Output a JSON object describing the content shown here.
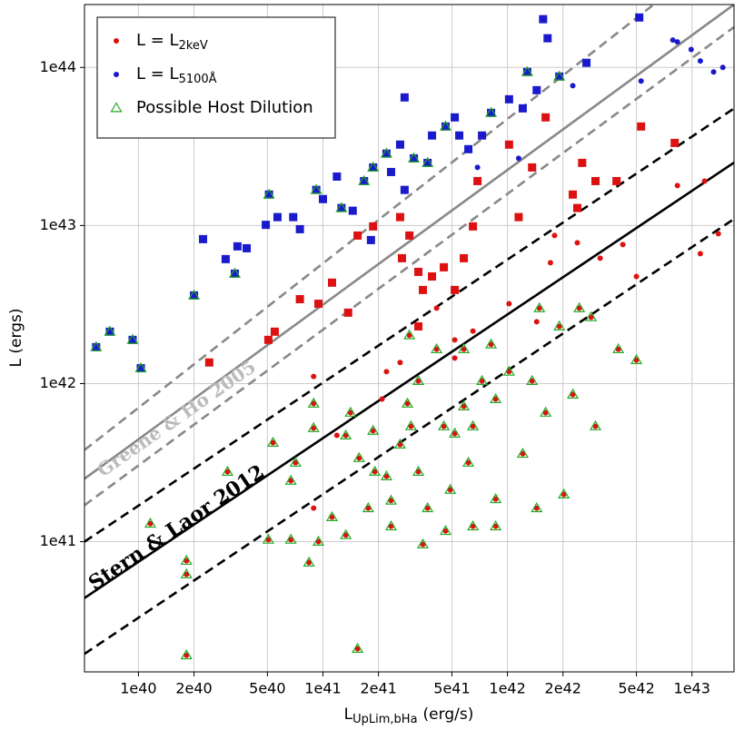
{
  "chart_data": {
    "type": "scatter",
    "xscale": "log",
    "yscale": "log",
    "grid": true,
    "legend": "upper left",
    "xlabel": {
      "main": "L",
      "sub": "UpLim,bHa",
      "unit": "(erg/s)"
    },
    "ylabel": "L (ergs)",
    "xlim": [
      5.1e+39,
      1.69e+43
    ],
    "ylim": [
      1.5e+40,
      2.5e+44
    ],
    "xticks": [
      {
        "value": 1e+40,
        "label": "1e40"
      },
      {
        "value": 2e+40,
        "label": "2e40"
      },
      {
        "value": 5e+40,
        "label": "5e40"
      },
      {
        "value": 1e+41,
        "label": "1e41"
      },
      {
        "value": 2e+41,
        "label": "2e41"
      },
      {
        "value": 5e+41,
        "label": "5e41"
      },
      {
        "value": 1e+42,
        "label": "1e42"
      },
      {
        "value": 2e+42,
        "label": "2e42"
      },
      {
        "value": 5e+42,
        "label": "5e42"
      },
      {
        "value": 1e+43,
        "label": "1e43"
      }
    ],
    "yticks": [
      {
        "value": 1e+41,
        "label": "1e41"
      },
      {
        "value": 1e+42,
        "label": "1e42"
      },
      {
        "value": 1e+43,
        "label": "1e43"
      },
      {
        "value": 1e+44,
        "label": "1e44"
      }
    ],
    "lines": [
      {
        "color": "#888888",
        "dash": true,
        "x": [
          5.1e+39,
          6.2e+42
        ],
        "y": [
          3.8e+41,
          2.5e+44
        ]
      },
      {
        "color": "#888888",
        "dash": false,
        "x": [
          5.1e+39,
          1.69e+43
        ],
        "y": [
          2.5e+41,
          2.5e+44
        ]
      },
      {
        "color": "#888888",
        "dash": true,
        "x": [
          5.1e+39,
          1.69e+43
        ],
        "y": [
          1.7e+41,
          1.8e+44
        ]
      },
      {
        "color": "#000000",
        "dash": true,
        "x": [
          5.1e+39,
          1.69e+43
        ],
        "y": [
          1e+41,
          5.5e+43
        ]
      },
      {
        "color": "#000000",
        "dash": false,
        "x": [
          5.1e+39,
          1.69e+43
        ],
        "y": [
          4.4e+40,
          2.5e+43
        ]
      },
      {
        "color": "#000000",
        "dash": true,
        "x": [
          5.1e+39,
          1.69e+43
        ],
        "y": [
          1.95e+40,
          1.1e+43
        ]
      }
    ],
    "annotations": [
      {
        "text": "Greene & Ho 2005",
        "color": "#bbbbbb"
      },
      {
        "text": "Stern & Laor 2012",
        "color": "#000000"
      }
    ],
    "series": [
      {
        "marker": "square",
        "color": "#1a1acc",
        "x": [
          5.9e+39,
          7e+39,
          9.3e+39,
          1.03e+40,
          2e+40,
          2.24e+40,
          2.97e+40,
          3.33e+40,
          3.44e+40,
          3.86e+40,
          5.1e+40,
          4.9e+40,
          5.67e+40,
          6.9e+40,
          7.5e+40,
          9.2e+40,
          1e+41,
          1.19e+41,
          1.26e+41,
          1.45e+41,
          1.67e+41,
          1.87e+41,
          1.82e+41,
          2.21e+41,
          2.34e+41,
          2.62e+41,
          2.77e+41,
          3.11e+41,
          3.69e+41,
          3.9e+41,
          4.62e+41,
          5.18e+41,
          5.48e+41,
          6.14e+41,
          7.28e+41,
          8.15e+41,
          1.02e+42,
          1.21e+42,
          1.28e+42,
          1.44e+42,
          1.56e+42,
          1.65e+42,
          1.91e+42,
          2.68e+42,
          5.18e+42,
          2.77e+41
        ],
        "y": [
          1.7e+42,
          2.13e+42,
          1.89e+42,
          1.25e+42,
          3.61e+42,
          8.2e+42,
          6.13e+42,
          4.96e+42,
          7.38e+42,
          7.18e+42,
          1.57e+43,
          1.01e+43,
          1.13e+43,
          1.13e+43,
          9.48e+42,
          1.68e+43,
          1.47e+43,
          2.04e+43,
          1.29e+43,
          1.24e+43,
          1.91e+43,
          2.33e+43,
          8.09e+42,
          2.85e+43,
          2.18e+43,
          3.25e+43,
          1.68e+43,
          2.66e+43,
          2.49e+43,
          3.71e+43,
          4.23e+43,
          4.83e+43,
          3.71e+43,
          3.04e+43,
          3.71e+43,
          5.16e+43,
          6.29e+43,
          5.51e+43,
          9.36e+43,
          7.18e+43,
          2.02e+44,
          1.53e+44,
          8.76e+43,
          1.07e+44,
          2.07e+44,
          6.46e+43
        ]
      },
      {
        "marker": "square",
        "color": "#dd1111",
        "x": [
          2.42e+40,
          5.06e+40,
          5.48e+40,
          7.5e+40,
          9.45e+40,
          1.12e+41,
          1.37e+41,
          1.54e+41,
          1.87e+41,
          2.62e+41,
          2.68e+41,
          2.94e+41,
          3.29e+41,
          3.48e+41,
          3.9e+41,
          4.52e+41,
          5.18e+41,
          6.5e+41,
          6.88e+41,
          1.02e+42,
          1.15e+42,
          1.36e+42,
          1.61e+42,
          2.26e+42,
          2.39e+42,
          2.54e+42,
          3e+42,
          3.9e+42,
          5.3e+42,
          8.06e+42,
          3.29e+41,
          5.8e+41
        ],
        "y": [
          1.36e+42,
          1.89e+42,
          2.13e+42,
          3.42e+42,
          3.2e+42,
          4.35e+42,
          2.81e+42,
          8.64e+42,
          9.87e+42,
          1.13e+43,
          6.21e+42,
          8.64e+42,
          5.09e+42,
          3.91e+42,
          4.76e+42,
          5.44e+42,
          3.91e+42,
          9.87e+42,
          1.91e+43,
          3.25e+43,
          1.13e+43,
          2.33e+43,
          4.83e+43,
          1.57e+43,
          1.29e+43,
          2.49e+43,
          1.91e+43,
          1.91e+43,
          4.23e+43,
          3.33e+43,
          2.3e+42,
          6.21e+42
        ]
      },
      {
        "name": "L =  L",
        "subscript": "2keV",
        "marker": "circle",
        "color": "#dd1111",
        "x": [
          8.9e+40,
          1.19e+41,
          2.21e+41,
          2.62e+41,
          4.13e+41,
          5.18e+41,
          6.5e+41,
          1.02e+42,
          1.44e+42,
          1.71e+42,
          1.8e+42,
          2.39e+42,
          3.18e+42,
          4.22e+42,
          5e+42,
          8.34e+42,
          1.17e+43,
          1.39e+43,
          1.11e+43,
          5.18e+41,
          2.09e+41,
          8.9e+40,
          2.94e+41,
          4.13e+41,
          5.8e+41,
          8.15e+41,
          5.36e+40,
          7.1e+40,
          6.7e+40,
          8.9e+40,
          8.9e+40,
          1.33e+41,
          1.41e+41,
          1.57e+41,
          1.87e+41,
          1.91e+41,
          2.21e+41,
          2.34e+41,
          2.62e+41,
          2.87e+41,
          3e+41,
          3.29e+41,
          3.69e+41,
          4.52e+41,
          4.9e+41,
          5.18e+41,
          5.8e+41,
          6.14e+41,
          6.5e+41,
          7.28e+41,
          8.63e+41,
          1.02e+42,
          1.21e+42,
          1.36e+42,
          1.49e+42,
          1.61e+42,
          1.91e+42,
          2.26e+42,
          3e+42,
          3.99e+42,
          5e+42,
          2.84e+42,
          2.02e+42,
          2.45e+42,
          1.44e+42,
          3.04e+40,
          5.06e+40,
          6.7e+40,
          8.4e+40,
          9.45e+40,
          1.12e+41,
          1.33e+41,
          1.76e+41,
          2.34e+41,
          3.48e+41,
          4.62e+41,
          6.5e+41,
          8.63e+41,
          1.16e+40,
          1.82e+40,
          1.82e+40,
          1.82e+40,
          1.54e+41,
          3.29e+41,
          8.63e+41
        ],
        "y": [
          1.11e+42,
          4.7e+41,
          1.19e+42,
          1.36e+42,
          3e+42,
          1.89e+42,
          2.15e+42,
          3.2e+42,
          2.46e+42,
          5.81e+42,
          8.64e+42,
          7.78e+42,
          6.21e+42,
          7.57e+42,
          4.76e+42,
          1.79e+43,
          1.91e+43,
          8.87e+42,
          6.64e+42,
          1.45e+42,
          7.98e+41,
          1.63e+41,
          2.02e+42,
          1.65e+42,
          1.65e+42,
          1.77e+42,
          4.23e+41,
          3.16e+41,
          2.43e+41,
          7.48e+41,
          5.23e+41,
          4.7e+41,
          6.55e+41,
          3.38e+41,
          5.03e+41,
          2.77e+41,
          2.59e+41,
          1.82e+41,
          4.12e+41,
          7.48e+41,
          5.37e+41,
          2.77e+41,
          1.63e+41,
          5.37e+41,
          2.13e+41,
          4.83e+41,
          7.18e+41,
          3.16e+41,
          5.37e+41,
          1.04e+42,
          1.86e+41,
          1.19e+42,
          3.6e+41,
          1.04e+42,
          3e+42,
          6.55e+41,
          2.3e+42,
          8.53e+41,
          5.37e+41,
          1.65e+42,
          1.41e+42,
          2.63e+42,
          1.99e+41,
          3e+42,
          1.63e+41,
          2.77e+41,
          1.03e+41,
          1.03e+41,
          7.38e+40,
          1e+41,
          1.43e+41,
          1.1e+41,
          1.63e+41,
          1.25e+41,
          9.61e+40,
          1.17e+41,
          1.25e+41,
          1.25e+41,
          1.3e+41,
          7.57e+40,
          6.21e+40,
          1.91e+40,
          2.1e+40,
          1.04e+42,
          7.98e+41
        ]
      },
      {
        "name": "L =  L",
        "subscript": "5100Å",
        "marker": "circle",
        "color": "#1a1acc",
        "x": [
          7.88e+42,
          8.34e+42,
          9.9e+42,
          1.11e+43,
          1.31e+43,
          1.47e+43,
          5.3e+42,
          2.26e+42,
          6.88e+41,
          1.15e+42
        ],
        "y": [
          1.49e+44,
          1.45e+44,
          1.3e+44,
          1.1e+44,
          9.36e+43,
          1e+44,
          8.2e+43,
          7.67e+43,
          2.33e+43,
          2.66e+43
        ]
      },
      {
        "name": "Possible Host Dilution",
        "marker": "triangle",
        "color": "#22aa22",
        "x": [
          5.9e+39,
          7e+39,
          9.3e+39,
          1.03e+40,
          2e+40,
          3.33e+40,
          5.1e+40,
          9.2e+40,
          1.67e+41,
          2.21e+41,
          3.11e+41,
          4.62e+41,
          8.15e+41,
          1.28e+42,
          1.91e+42,
          1.87e+41,
          3.69e+41,
          1.26e+41,
          2.94e+41,
          4.13e+41,
          5.8e+41,
          8.15e+41,
          5.36e+40,
          7.1e+40,
          6.7e+40,
          8.9e+40,
          8.9e+40,
          1.33e+41,
          1.41e+41,
          1.57e+41,
          1.87e+41,
          1.91e+41,
          2.21e+41,
          2.34e+41,
          2.62e+41,
          2.87e+41,
          3e+41,
          3.29e+41,
          3.69e+41,
          4.52e+41,
          4.9e+41,
          5.18e+41,
          5.8e+41,
          6.14e+41,
          6.5e+41,
          7.28e+41,
          8.63e+41,
          1.02e+42,
          1.21e+42,
          1.36e+42,
          1.49e+42,
          1.61e+42,
          1.91e+42,
          2.26e+42,
          3e+42,
          3.99e+42,
          5e+42,
          2.84e+42,
          2.02e+42,
          2.45e+42,
          1.44e+42,
          3.04e+40,
          5.06e+40,
          6.7e+40,
          8.4e+40,
          9.45e+40,
          1.12e+41,
          1.33e+41,
          1.76e+41,
          2.34e+41,
          3.48e+41,
          4.62e+41,
          6.5e+41,
          8.63e+41,
          1.16e+40,
          1.82e+40,
          1.82e+40,
          1.82e+40,
          1.54e+41,
          3.29e+41,
          8.63e+41
        ],
        "y": [
          1.7e+42,
          2.13e+42,
          1.89e+42,
          1.25e+42,
          3.61e+42,
          4.96e+42,
          1.57e+43,
          1.68e+43,
          1.91e+43,
          2.85e+43,
          2.66e+43,
          4.23e+43,
          5.16e+43,
          9.36e+43,
          8.76e+43,
          2.33e+43,
          2.49e+43,
          1.29e+43,
          2.02e+42,
          1.65e+42,
          1.65e+42,
          1.77e+42,
          4.23e+41,
          3.16e+41,
          2.43e+41,
          7.48e+41,
          5.23e+41,
          4.7e+41,
          6.55e+41,
          3.38e+41,
          5.03e+41,
          2.77e+41,
          2.59e+41,
          1.82e+41,
          4.12e+41,
          7.48e+41,
          5.37e+41,
          2.77e+41,
          1.63e+41,
          5.37e+41,
          2.13e+41,
          4.83e+41,
          7.18e+41,
          3.16e+41,
          5.37e+41,
          1.04e+42,
          1.86e+41,
          1.19e+42,
          3.6e+41,
          1.04e+42,
          3e+42,
          6.55e+41,
          2.3e+42,
          8.53e+41,
          5.37e+41,
          1.65e+42,
          1.41e+42,
          2.63e+42,
          1.99e+41,
          3e+42,
          1.63e+41,
          2.77e+41,
          1.03e+41,
          1.03e+41,
          7.38e+40,
          1e+41,
          1.43e+41,
          1.1e+41,
          1.63e+41,
          1.25e+41,
          9.61e+40,
          1.17e+41,
          1.25e+41,
          1.25e+41,
          1.3e+41,
          7.57e+40,
          6.21e+40,
          1.91e+40,
          2.1e+40,
          1.04e+42,
          7.98e+41
        ]
      }
    ]
  }
}
